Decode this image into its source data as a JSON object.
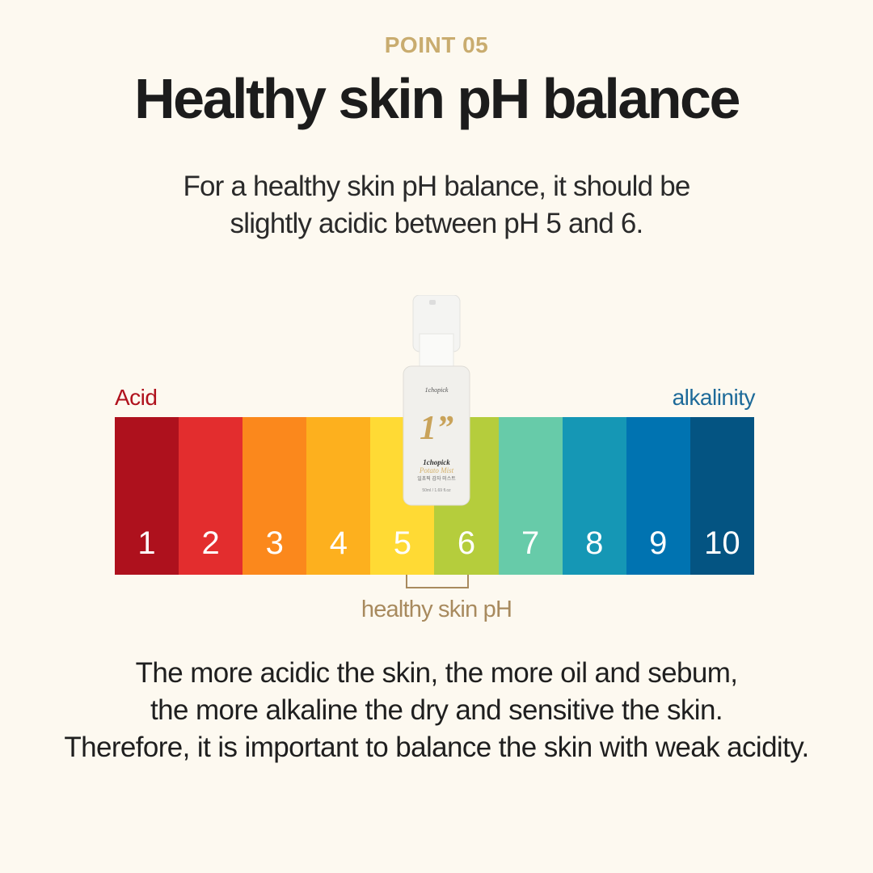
{
  "header": {
    "point_label": "POINT 05",
    "title": "Healthy skin pH balance",
    "subtitle_line1": "For a healthy skin pH balance, it should be",
    "subtitle_line2": "slightly acidic between pH 5 and 6."
  },
  "scale": {
    "acid_label": "Acid",
    "alkaline_label": "alkalinity",
    "acid_color": "#b0121d",
    "alkaline_color": "#1d6a99",
    "segments": [
      {
        "value": "1",
        "color": "#ae111d"
      },
      {
        "value": "2",
        "color": "#e32d2e"
      },
      {
        "value": "3",
        "color": "#fb881c"
      },
      {
        "value": "4",
        "color": "#fdb01e"
      },
      {
        "value": "5",
        "color": "#ffda34"
      },
      {
        "value": "6",
        "color": "#b5cd3c"
      },
      {
        "value": "7",
        "color": "#67cba9"
      },
      {
        "value": "8",
        "color": "#1597b5"
      },
      {
        "value": "9",
        "color": "#0073b1"
      },
      {
        "value": "10",
        "color": "#045482"
      }
    ],
    "healthy_range": [
      5,
      6
    ],
    "healthy_label": "healthy skin pH"
  },
  "product": {
    "brand_small": "1chopick",
    "big_mark": "1”",
    "brand": "1chopick",
    "name": "Potato Mist",
    "korean_name": "일초픽 감자 미스트",
    "volume": "50ml / 1.69 fl.oz"
  },
  "body_text": {
    "line1": "The more acidic the skin, the more oil and sebum,",
    "line2": "the more alkaline the dry and sensitive the skin.",
    "line3": "Therefore, it is important to balance the skin with weak acidity."
  }
}
